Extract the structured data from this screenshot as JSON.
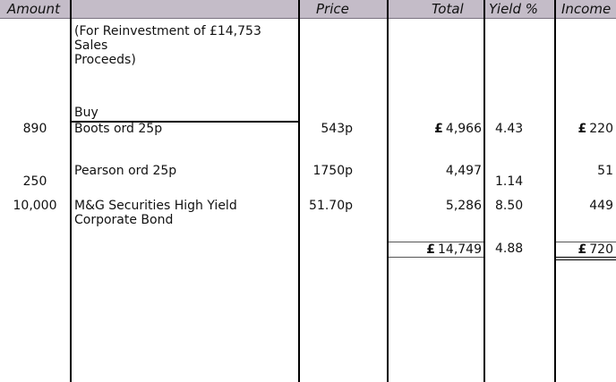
{
  "headers": {
    "amount": "Amount",
    "description": "",
    "price": "Price",
    "total": "Total",
    "yield": "Yield %",
    "income": "Income"
  },
  "intro": {
    "line1": "(For Reinvestment of £14,753",
    "line2": "Sales",
    "line3": "Proceeds)",
    "buy": "Buy"
  },
  "rows": [
    {
      "amount": "890",
      "description": [
        "Boots ord 25p"
      ],
      "price": "543p",
      "total_currency": "£",
      "total": "4,966",
      "yield": "4.43",
      "income_currency": "£",
      "income": "220"
    },
    {
      "amount": "250",
      "description": [
        "Pearson ord 25p"
      ],
      "price": "1750p",
      "total_currency": "",
      "total": "4,497",
      "yield": "1.14",
      "income_currency": "",
      "income": "51"
    },
    {
      "amount": "10,000",
      "description": [
        "M&G Securities High Yield",
        "Corporate Bond"
      ],
      "price": "51.70p",
      "total_currency": "",
      "total": "5,286",
      "yield": "8.50",
      "income_currency": "",
      "income": "449"
    }
  ],
  "totals": {
    "total_currency": "£",
    "total": "14,749",
    "yield": "4.88",
    "income_currency": "£",
    "income": "720"
  },
  "colors": {
    "header_bg": "#c4bcc8",
    "rule": "#000000"
  }
}
